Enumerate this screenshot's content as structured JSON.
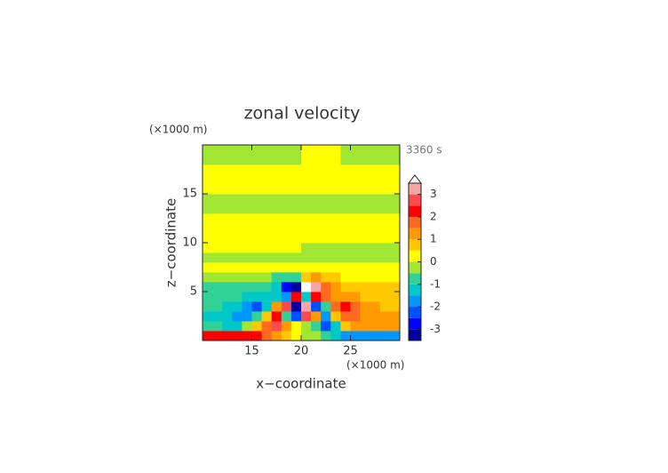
{
  "chart_data": {
    "type": "contour",
    "title": "zonal velocity",
    "x_label": "x−coordinate",
    "y_label": "z−coordinate",
    "x_unit": "(×1000 m)",
    "y_unit": "(×1000 m)",
    "time_label": "3360 s",
    "xlim": [
      10,
      30
    ],
    "ylim": [
      0,
      20
    ],
    "xticks": [
      15,
      20,
      25
    ],
    "yticks": [
      5,
      10,
      15
    ],
    "x": [
      10.5,
      11.5,
      12.5,
      13.5,
      14.5,
      15.5,
      16.5,
      17.5,
      18.5,
      19.5,
      20.5,
      21.5,
      22.5,
      23.5,
      24.5,
      25.5,
      26.5,
      27.5,
      28.5,
      29.5
    ],
    "y": [
      0.5,
      1.5,
      2.5,
      3.5,
      4.5,
      5.5,
      6.5,
      7.5,
      8.5,
      9.5,
      10.5,
      11.5,
      12.5,
      13.5,
      14.5,
      15.5,
      16.5,
      17.5,
      18.5,
      19.5
    ],
    "values": [
      [
        2,
        2,
        2,
        2,
        2,
        2,
        1.5,
        1,
        0.5,
        0.2,
        -0.2,
        -0.5,
        -1,
        -1.5,
        -2,
        -2,
        -2,
        -2,
        -2,
        -2
      ],
      [
        -1,
        -1,
        -1.2,
        -1.5,
        -0.5,
        0.5,
        1.5,
        2.5,
        1,
        0.2,
        -0.2,
        -1,
        -2.5,
        -1.5,
        0.5,
        1,
        1.2,
        1,
        1,
        1
      ],
      [
        -1.2,
        -1.3,
        -1.5,
        -1.8,
        -2,
        -1,
        0.5,
        2,
        -1,
        -2.5,
        2.5,
        1,
        -2,
        0.5,
        1.5,
        1.5,
        1.2,
        1,
        1,
        1
      ],
      [
        -1,
        -1,
        -1.2,
        -1.5,
        -1.8,
        -2.2,
        -1.5,
        1,
        2.5,
        -3.2,
        3.2,
        -2.5,
        -1,
        1.5,
        2,
        1.5,
        1.2,
        1,
        0.8,
        0.8
      ],
      [
        -0.8,
        -0.8,
        -1,
        -1,
        -1.2,
        -1.2,
        -1.2,
        -1.5,
        -2,
        2,
        -1.5,
        2,
        1.5,
        1,
        1,
        1,
        0.8,
        0.8,
        0.6,
        0.6
      ],
      [
        -0.6,
        -0.6,
        -0.7,
        -0.7,
        -0.8,
        -0.8,
        -1,
        -1.5,
        -3,
        -3.4,
        3.6,
        3,
        1.5,
        1,
        0.8,
        0.7,
        0.7,
        0.6,
        0.6,
        0.6
      ],
      [
        -0.2,
        -0.2,
        -0.2,
        -0.3,
        -0.3,
        -0.4,
        -0.5,
        -0.7,
        -1,
        -0.6,
        0.6,
        1,
        0.7,
        0.5,
        0.3,
        0.3,
        0.3,
        0.2,
        0.2,
        0.2
      ],
      [
        0.2,
        0.2,
        0.2,
        0.2,
        0.2,
        0.2,
        0.2,
        0.2,
        0.2,
        0.2,
        0.2,
        0.2,
        0.2,
        0.2,
        0.2,
        0.2,
        0.2,
        0.2,
        0.2,
        0.2
      ],
      [
        -0.2,
        -0.2,
        -0.2,
        -0.2,
        -0.2,
        -0.2,
        -0.2,
        -0.2,
        -0.2,
        -0.2,
        -0.2,
        -0.2,
        -0.2,
        -0.2,
        -0.2,
        -0.2,
        -0.2,
        -0.2,
        -0.2,
        -0.2
      ],
      [
        0.2,
        0.2,
        0.2,
        0.2,
        0.2,
        0.2,
        0.2,
        0.2,
        0.2,
        0.2,
        -0.2,
        -0.2,
        -0.2,
        -0.2,
        -0.2,
        -0.2,
        -0.2,
        -0.2,
        -0.2,
        -0.2
      ],
      [
        0.2,
        0.2,
        0.2,
        0.2,
        0.2,
        0.2,
        0.2,
        0.2,
        0.2,
        0.2,
        0.2,
        0.2,
        0.2,
        0.2,
        0.2,
        0.2,
        0.2,
        0.2,
        0.2,
        0.2
      ],
      [
        0.2,
        0.2,
        0.2,
        0.2,
        0.2,
        0.2,
        0.2,
        0.2,
        0.2,
        0.2,
        0.2,
        0.2,
        0.2,
        0.2,
        0.2,
        0.2,
        0.2,
        0.2,
        0.2,
        0.2
      ],
      [
        0.2,
        0.2,
        0.2,
        0.2,
        0.2,
        0.2,
        0.2,
        0.2,
        0.2,
        0.2,
        0.2,
        0.2,
        0.2,
        0.2,
        0.2,
        0.2,
        0.2,
        0.2,
        0.2,
        0.2
      ],
      [
        -0.2,
        -0.2,
        -0.2,
        -0.2,
        -0.2,
        -0.2,
        -0.2,
        -0.2,
        -0.2,
        -0.2,
        -0.2,
        -0.2,
        -0.2,
        -0.2,
        -0.2,
        -0.2,
        -0.2,
        -0.2,
        -0.2,
        -0.2
      ],
      [
        -0.2,
        -0.2,
        -0.2,
        -0.2,
        -0.2,
        -0.2,
        -0.2,
        -0.2,
        -0.2,
        -0.2,
        -0.2,
        -0.2,
        -0.2,
        -0.2,
        -0.2,
        -0.2,
        -0.2,
        -0.2,
        -0.2,
        -0.2
      ],
      [
        0.2,
        0.2,
        0.2,
        0.2,
        0.2,
        0.2,
        0.2,
        0.2,
        0.2,
        0.2,
        0.2,
        0.2,
        0.2,
        0.2,
        0.2,
        0.2,
        0.2,
        0.2,
        0.2,
        0.2
      ],
      [
        0.2,
        0.2,
        0.2,
        0.2,
        0.2,
        0.2,
        0.2,
        0.2,
        0.2,
        0.2,
        0.2,
        0.2,
        0.2,
        0.2,
        0.2,
        0.2,
        0.2,
        0.2,
        0.2,
        0.2
      ],
      [
        0.2,
        0.2,
        0.2,
        0.2,
        0.2,
        0.2,
        0.2,
        0.2,
        0.2,
        0.2,
        0.2,
        0.2,
        0.2,
        0.2,
        0.2,
        0.2,
        0.2,
        0.2,
        0.2,
        0.2
      ],
      [
        -0.2,
        -0.2,
        -0.2,
        -0.2,
        -0.2,
        -0.2,
        -0.2,
        -0.2,
        -0.2,
        -0.2,
        0.2,
        0.2,
        0.2,
        0.2,
        -0.2,
        -0.2,
        -0.2,
        -0.2,
        -0.2,
        -0.2
      ],
      [
        -0.2,
        -0.2,
        -0.2,
        -0.2,
        -0.2,
        -0.2,
        -0.2,
        -0.2,
        -0.2,
        -0.2,
        0.2,
        0.2,
        0.2,
        0.2,
        -0.2,
        -0.2,
        -0.2,
        -0.2,
        -0.2,
        -0.2
      ]
    ],
    "levels": [
      -3.5,
      -3,
      -2.5,
      -2,
      -1.5,
      -1,
      -0.5,
      0,
      0.5,
      1,
      1.5,
      2,
      2.5,
      3,
      3.5
    ],
    "colors": [
      "#0000a0",
      "#0000ff",
      "#0050ff",
      "#0096ff",
      "#00c8c8",
      "#32d296",
      "#a0e632",
      "#ffff00",
      "#ffc800",
      "#ff9a00",
      "#ff6a20",
      "#ff0000",
      "#ff4b4b",
      "#f7a5a5"
    ],
    "over_color": "#ffffff",
    "colorbar_ticks": [
      3,
      2,
      1,
      0,
      -1,
      -2,
      -3
    ]
  }
}
